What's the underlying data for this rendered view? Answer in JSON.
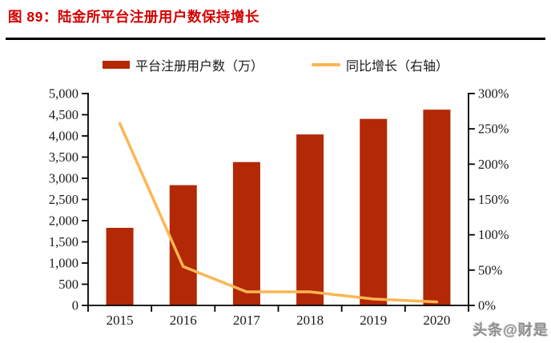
{
  "header": {
    "title": "图 89：陆金所平台注册用户数保持增长"
  },
  "watermark": "头条@财是",
  "colors": {
    "title_red": "#D40000",
    "bar": "#B32805",
    "line": "#FCB653",
    "axis": "#000000",
    "tick_text": "#1a1a1a"
  },
  "chart_data": {
    "type": "bar",
    "subtype": "bar+line combo, dual axis",
    "categories": [
      "2015",
      "2016",
      "2017",
      "2018",
      "2019",
      "2020"
    ],
    "series": [
      {
        "name": "平台注册用户数（万）",
        "type": "bar",
        "axis": "left",
        "values": [
          1831,
          2838,
          3383,
          4035,
          4402,
          4620
        ],
        "color": "#B32805"
      },
      {
        "name": "同比增长（右轴）",
        "type": "line",
        "axis": "right",
        "values_percent": [
          257.6,
          55.0,
          19.2,
          19.3,
          9.1,
          5.0
        ],
        "color": "#FCB653"
      }
    ],
    "left_axis": {
      "min": 0,
      "max": 5000,
      "step": 500,
      "ticks": [
        "5,000",
        "4,500",
        "4,000",
        "3,500",
        "3,000",
        "2,500",
        "2,000",
        "1,500",
        "1,000",
        "500",
        "0"
      ]
    },
    "right_axis": {
      "min": 0,
      "max": 300,
      "step": 50,
      "ticks": [
        "300%",
        "250%",
        "200%",
        "150%",
        "100%",
        "50%",
        "0%"
      ]
    },
    "legend_position": "top",
    "grid": "off"
  }
}
